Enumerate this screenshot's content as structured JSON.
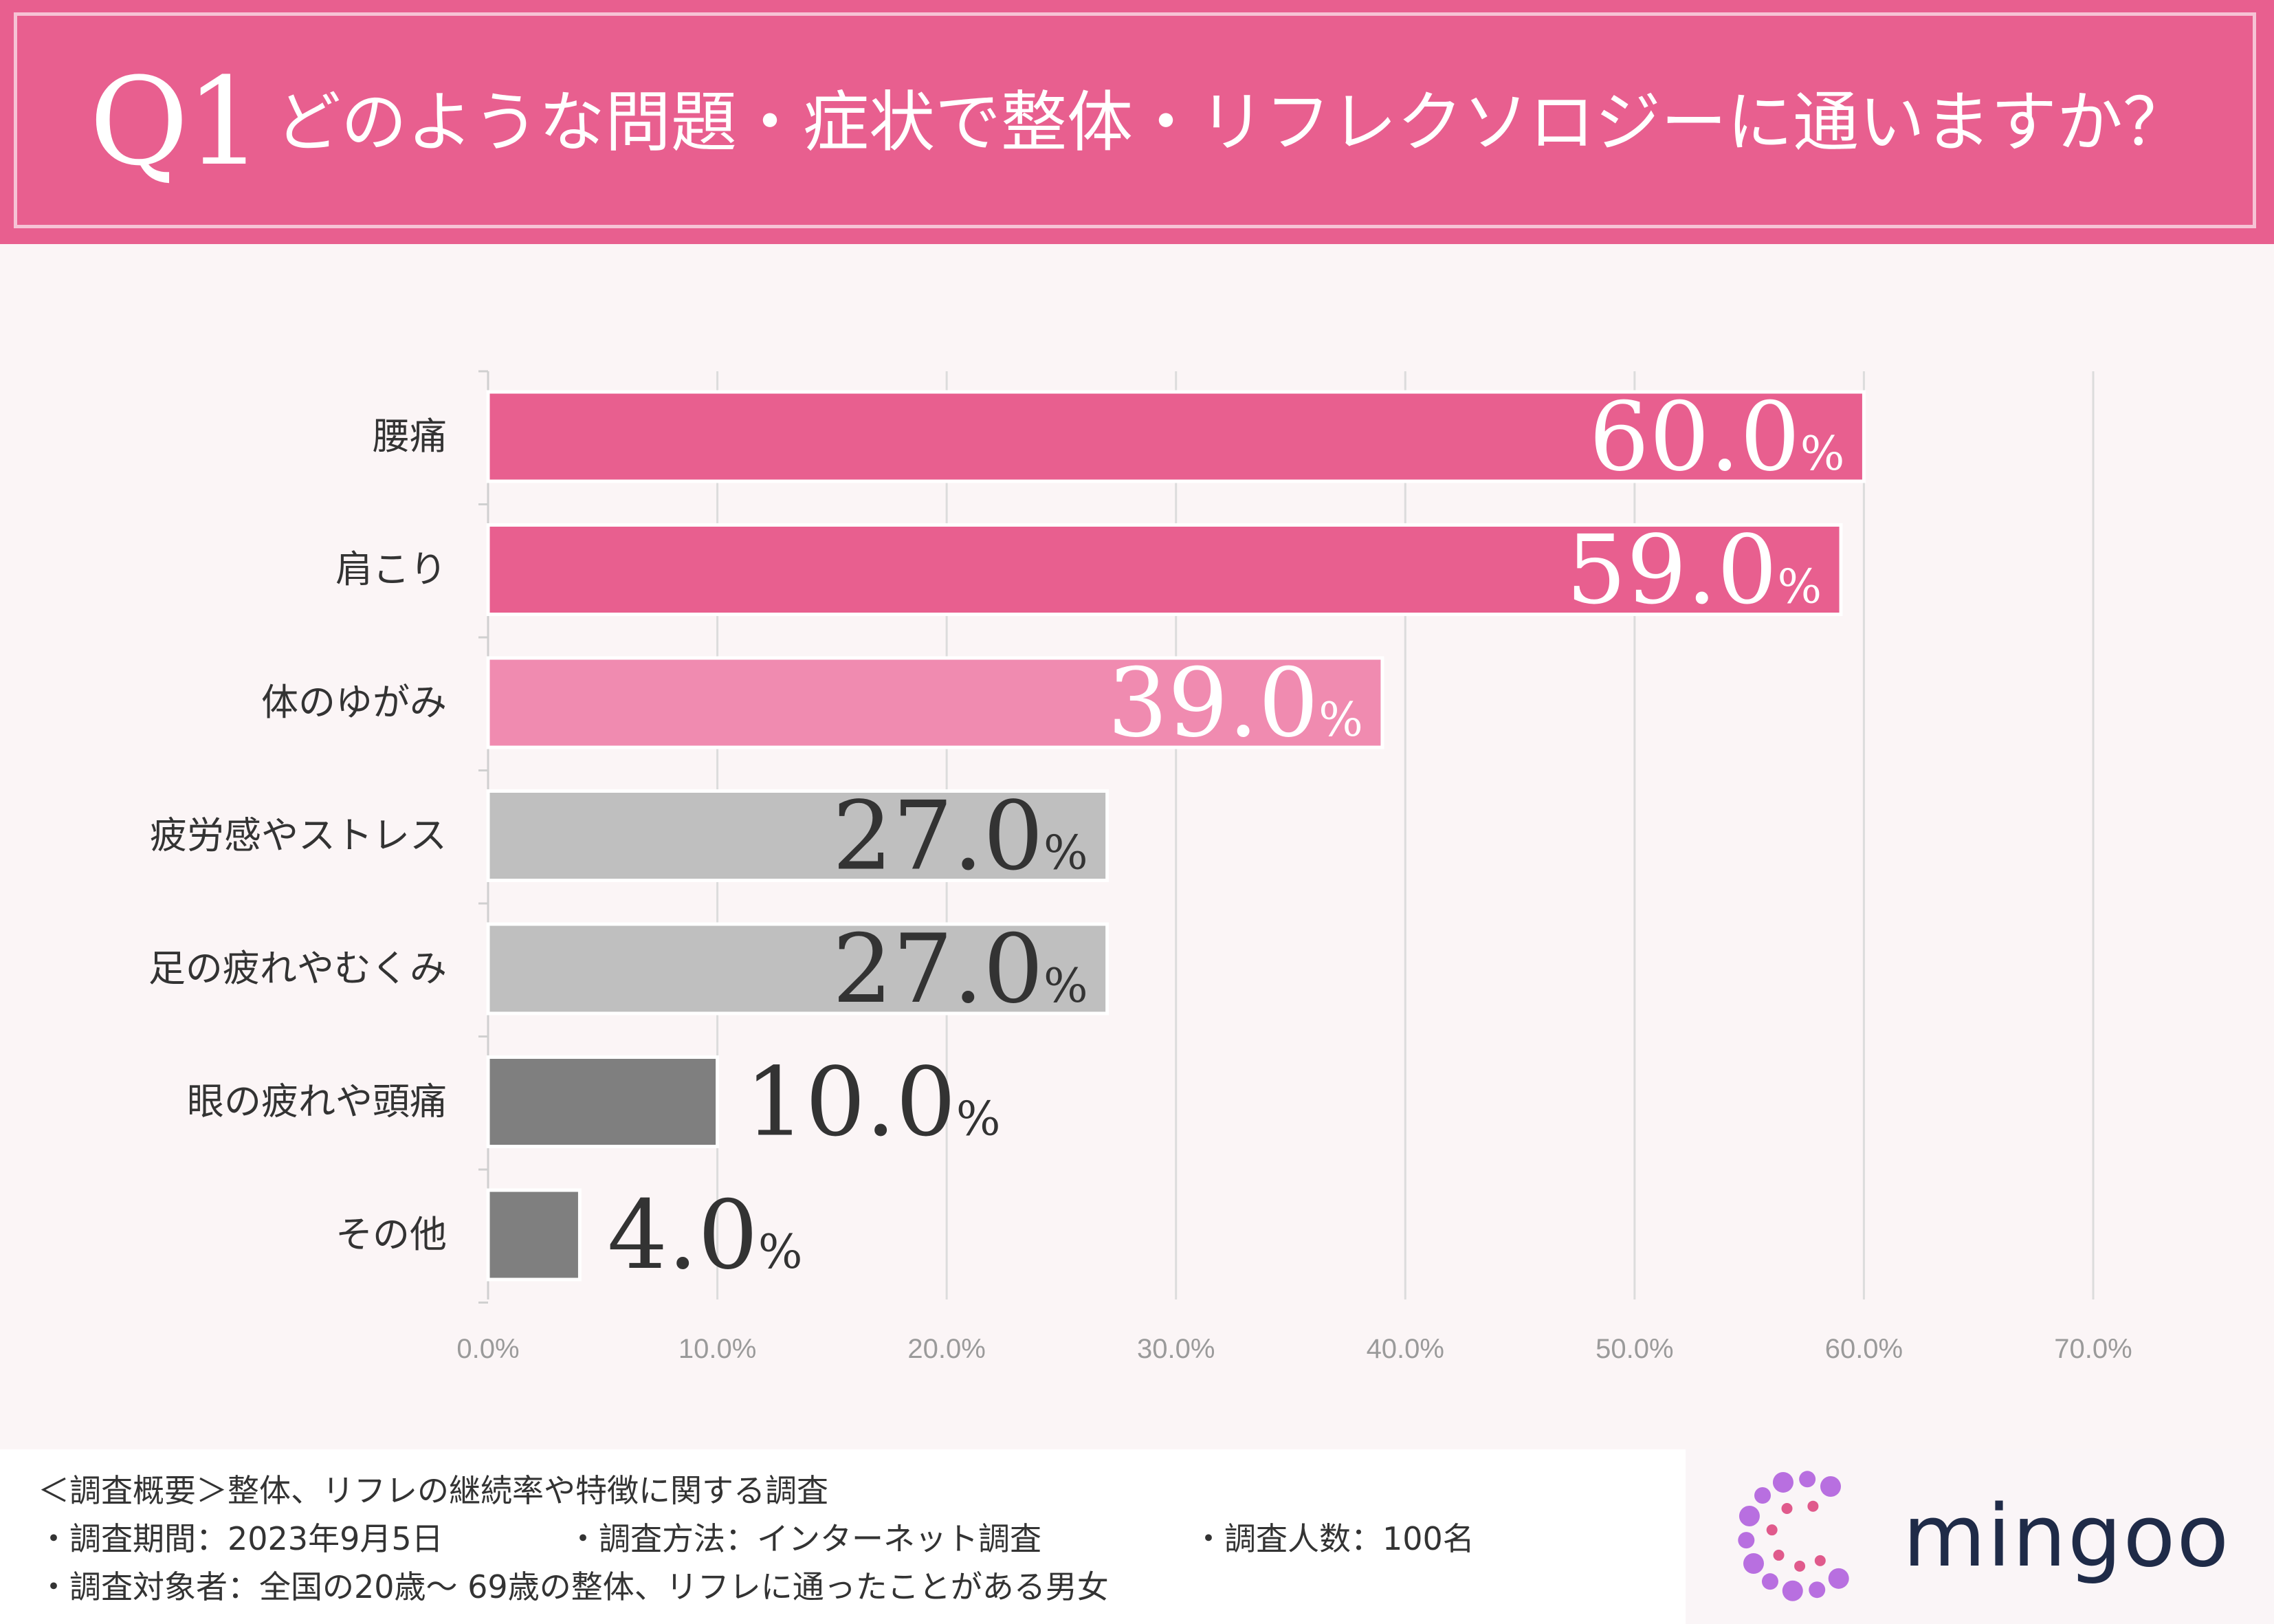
{
  "header": {
    "q_label": "Q1",
    "question": "どのような問題・症状で整体・リフレクソロジーに通いますか？"
  },
  "chart_data": {
    "type": "bar",
    "orientation": "horizontal",
    "categories": [
      "腰痛",
      "肩こり",
      "体のゆがみ",
      "疲労感やストレス",
      "足の疲れやむくみ",
      "眼の疲れや頭痛",
      "その他"
    ],
    "values": [
      60.0,
      59.0,
      39.0,
      27.0,
      27.0,
      10.0,
      4.0
    ],
    "value_labels": [
      "60.0",
      "59.0",
      "39.0",
      "27.0",
      "27.0",
      "10.0",
      "4.0"
    ],
    "value_unit": "%",
    "bar_colors": [
      "#e85f8f",
      "#e85f8f",
      "#f08bb0",
      "#bfbfbf",
      "#bfbfbf",
      "#7f7f7f",
      "#7f7f7f"
    ],
    "label_colors": [
      "#ffffff",
      "#ffffff",
      "#ffffff",
      "#333333",
      "#333333",
      "#333333",
      "#333333"
    ],
    "xlim": [
      0,
      70
    ],
    "xticks": [
      0,
      10,
      20,
      30,
      40,
      50,
      60,
      70
    ],
    "xtick_labels": [
      "0.0%",
      "10.0%",
      "20.0%",
      "30.0%",
      "40.0%",
      "50.0%",
      "60.0%",
      "70.0%"
    ],
    "grid": true,
    "xlabel": "",
    "ylabel": ""
  },
  "footer": {
    "overview": "＜調査概要＞整体、リフレの継続率や特徴に関する調査",
    "period": "・調査期間：2023年9月5日",
    "method": "・調査方法：インターネット調査",
    "count": "・調査人数：100名",
    "target": "・調査対象者：全国の20歳～ 69歳の整体、リフレに通ったことがある男女"
  },
  "logo": {
    "text": "mingoo",
    "colors": [
      "#b86fe0",
      "#e05a8c"
    ]
  }
}
